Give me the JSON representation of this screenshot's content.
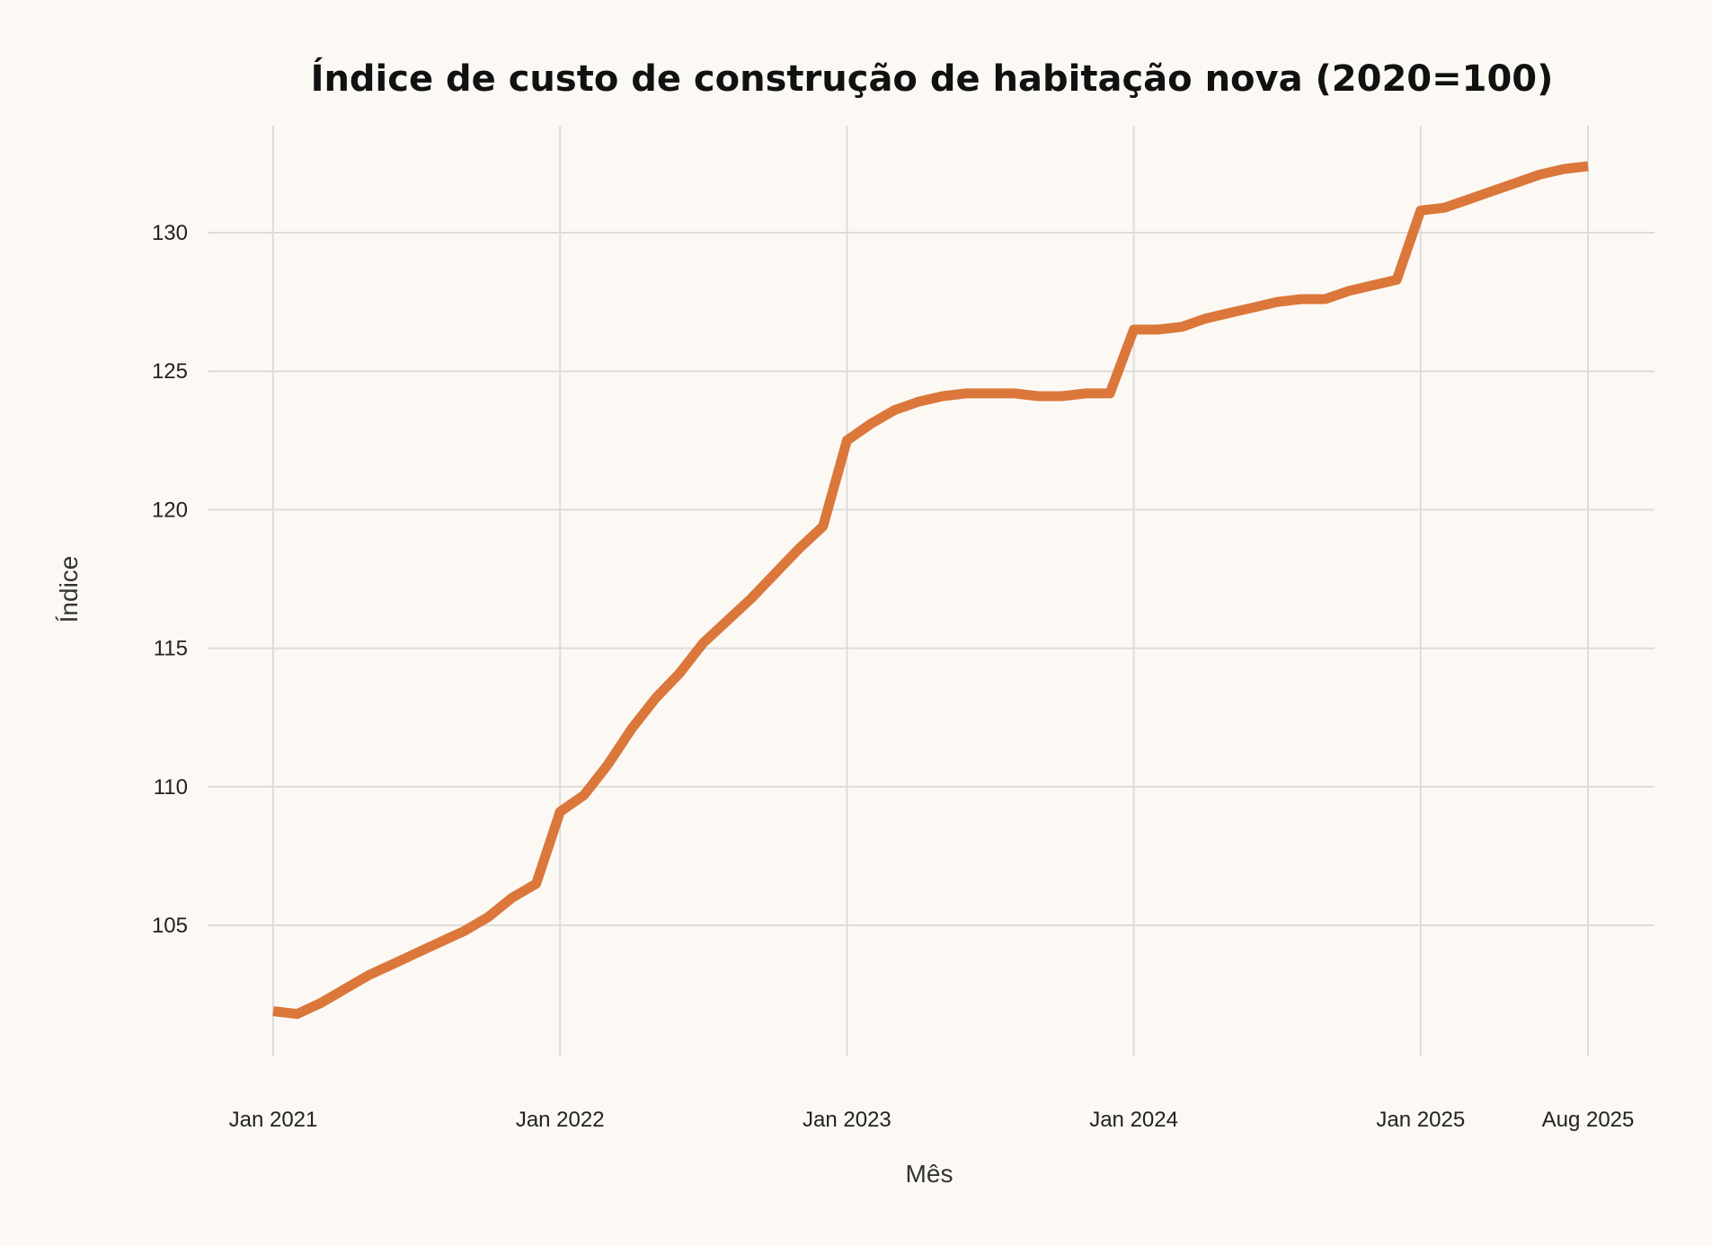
{
  "chart_data": {
    "type": "line",
    "title": "Índice de custo de construção de habitação nova (2020=100)",
    "xlabel": "Mês",
    "ylabel": "Índice",
    "grid": true,
    "line_color": "#DB773A",
    "background_color": "#FCF9F4",
    "grid_color": "#DDDCDC",
    "x_start": "2021-01",
    "x_ticks": [
      {
        "label": "Jan 2021",
        "month_index": 0
      },
      {
        "label": "Jan 2022",
        "month_index": 12
      },
      {
        "label": "Jan 2023",
        "month_index": 24
      },
      {
        "label": "Jan 2024",
        "month_index": 36
      },
      {
        "label": "Jan 2025",
        "month_index": 48
      },
      {
        "label": "Aug 2025",
        "month_index": 55
      }
    ],
    "y_ticks": [
      "105",
      "110",
      "115",
      "120",
      "125",
      "130"
    ],
    "ylim": [
      100.5,
      133.9
    ],
    "x": [
      "2021-01",
      "2021-02",
      "2021-03",
      "2021-04",
      "2021-05",
      "2021-06",
      "2021-07",
      "2021-08",
      "2021-09",
      "2021-10",
      "2021-11",
      "2021-12",
      "2022-01",
      "2022-02",
      "2022-03",
      "2022-04",
      "2022-05",
      "2022-06",
      "2022-07",
      "2022-08",
      "2022-09",
      "2022-10",
      "2022-11",
      "2022-12",
      "2023-01",
      "2023-02",
      "2023-03",
      "2023-04",
      "2023-05",
      "2023-06",
      "2023-07",
      "2023-08",
      "2023-09",
      "2023-10",
      "2023-11",
      "2023-12",
      "2024-01",
      "2024-02",
      "2024-03",
      "2024-04",
      "2024-05",
      "2024-06",
      "2024-07",
      "2024-08",
      "2024-09",
      "2024-10",
      "2024-11",
      "2024-12",
      "2025-01",
      "2025-02",
      "2025-03",
      "2025-04",
      "2025-05",
      "2025-06",
      "2025-07",
      "2025-08"
    ],
    "values": [
      101.9,
      101.8,
      102.2,
      102.7,
      103.2,
      103.6,
      104.0,
      104.4,
      104.8,
      105.3,
      106.0,
      106.5,
      109.1,
      109.7,
      110.8,
      112.1,
      113.2,
      114.1,
      115.2,
      116.0,
      116.8,
      117.7,
      118.6,
      119.4,
      122.5,
      123.1,
      123.6,
      123.9,
      124.1,
      124.2,
      124.2,
      124.2,
      124.1,
      124.1,
      124.2,
      124.2,
      126.5,
      126.5,
      126.6,
      126.9,
      127.1,
      127.3,
      127.5,
      127.6,
      127.6,
      127.9,
      128.1,
      128.3,
      130.8,
      130.9,
      131.2,
      131.5,
      131.8,
      132.1,
      132.3,
      132.4
    ]
  }
}
